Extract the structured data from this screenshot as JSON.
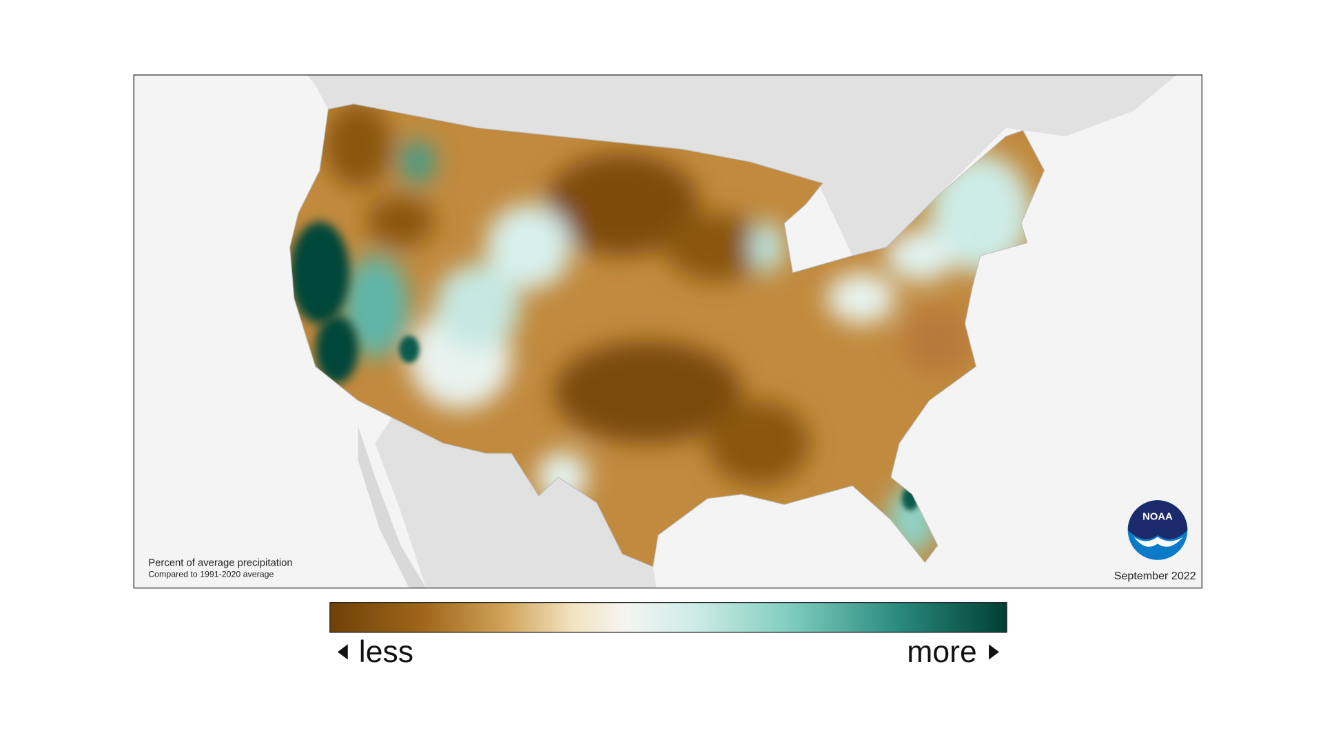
{
  "map": {
    "title": "Percent of average precipitation",
    "subtitle": "Compared to 1991-2020 average",
    "date": "September 2022",
    "logo": "NOAA"
  },
  "legend": {
    "less": "less",
    "more": "more"
  }
}
